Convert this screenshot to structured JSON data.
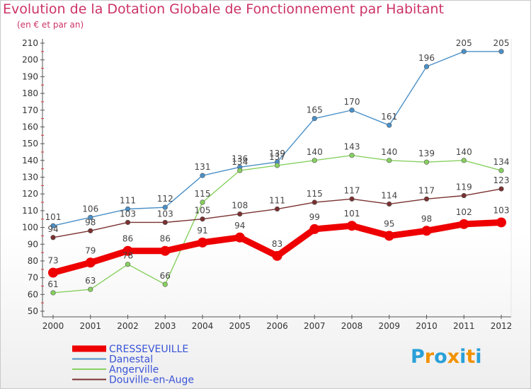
{
  "title": "Evolution de la Dotation Globale de Fonctionnement par Habitant",
  "subtitle": "(en € et par an)",
  "logo": {
    "text": "Proxiti",
    "letters": [
      "P",
      "r",
      "o",
      "x",
      "i",
      "t",
      "i"
    ],
    "colors": [
      "#2aa0d8",
      "#f29200",
      "#2aa0d8",
      "#f29200",
      "#2aa0d8",
      "#f29200",
      "#2aa0d8"
    ]
  },
  "chart_data": {
    "type": "line",
    "title": "Evolution de la Dotation Globale de Fonctionnement par Habitant",
    "subtitle": "(en € et par an)",
    "xlabel": "",
    "ylabel": "",
    "ylim": [
      50,
      210
    ],
    "ytick_step": 10,
    "grid": false,
    "legend_position": "bottom-left",
    "x": [
      "2000",
      "2001",
      "2002",
      "2003",
      "2004",
      "2005",
      "2006",
      "2007",
      "2008",
      "2009",
      "2010",
      "2011",
      "2012"
    ],
    "series": [
      {
        "name": "CRESSEVEUILLE",
        "color": "#ee0000",
        "values": [
          73,
          79,
          86,
          86,
          91,
          94,
          83,
          99,
          101,
          95,
          98,
          102,
          103
        ]
      },
      {
        "name": "Danestal",
        "color": "#4a90c8",
        "values": [
          101,
          106,
          111,
          112,
          131,
          136,
          139,
          165,
          170,
          161,
          196,
          205,
          205
        ]
      },
      {
        "name": "Angerville",
        "color": "#88d060",
        "values": [
          61,
          63,
          78,
          66,
          115,
          134,
          137,
          140,
          143,
          140,
          139,
          140,
          134
        ]
      },
      {
        "name": "Douville-en-Auge",
        "color": "#7a3030",
        "values": [
          94,
          98,
          103,
          103,
          105,
          108,
          111,
          115,
          117,
          114,
          117,
          119,
          123
        ]
      }
    ]
  }
}
